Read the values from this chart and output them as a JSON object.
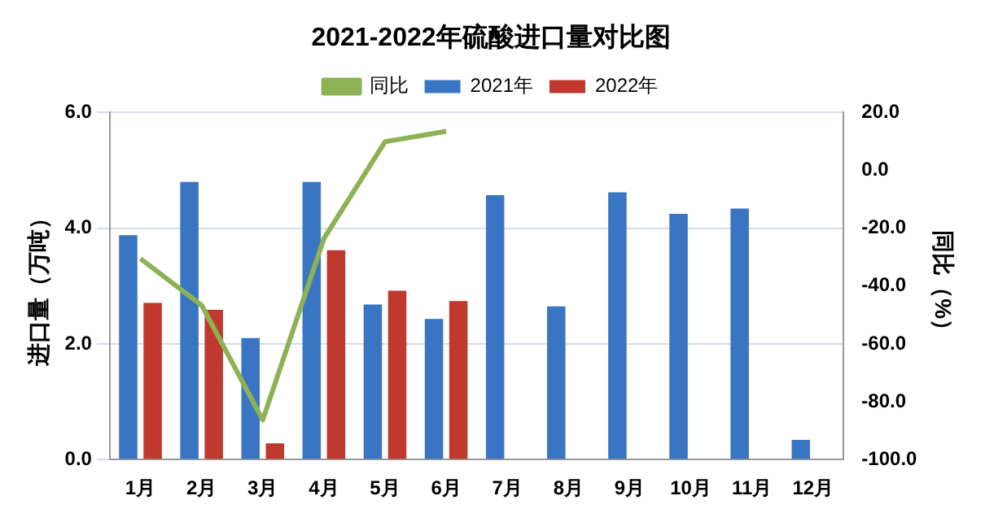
{
  "chart_data": {
    "type": "bar",
    "title": "2021-2022年硫酸进口量对比图",
    "categories": [
      "1月",
      "2月",
      "3月",
      "4月",
      "5月",
      "6月",
      "7月",
      "8月",
      "9月",
      "10月",
      "11月",
      "12月"
    ],
    "series": [
      {
        "name": "2021年",
        "color": "#3a75c4",
        "values": [
          3.88,
          4.8,
          2.1,
          4.8,
          2.68,
          2.43,
          4.57,
          2.65,
          4.62,
          4.25,
          4.34,
          0.34
        ]
      },
      {
        "name": "2022年",
        "color": "#c0392f",
        "values": [
          2.71,
          2.59,
          0.28,
          3.62,
          2.92,
          2.74,
          null,
          null,
          null,
          null,
          null,
          null
        ]
      },
      {
        "name": "同比",
        "type": "line",
        "axis": "y2",
        "color": "#8db255",
        "values": [
          -30.5,
          -46.6,
          -86.3,
          -23.6,
          9.9,
          13.5,
          null,
          null,
          null,
          null,
          null,
          null
        ]
      }
    ],
    "ylabel": "进口量（万吨）",
    "y2label": "同比（%）",
    "ylim": [
      0,
      6
    ],
    "yticks": [
      {
        "value": 0,
        "label": "0.0"
      },
      {
        "value": 2,
        "label": "2.0"
      },
      {
        "value": 4,
        "label": "4.0"
      },
      {
        "value": 6,
        "label": "6.0"
      }
    ],
    "y2lim": [
      -100,
      20
    ],
    "y2ticks": [
      {
        "value": -100,
        "label": "-100.0"
      },
      {
        "value": -80,
        "label": "-80.0"
      },
      {
        "value": -60,
        "label": "-60.0"
      },
      {
        "value": -40,
        "label": "-40.0"
      },
      {
        "value": -20,
        "label": "-20.0"
      },
      {
        "value": 0,
        "label": "0.0"
      },
      {
        "value": 20,
        "label": "20.0"
      }
    ],
    "grid": "y",
    "legend": "top",
    "marker": "none"
  }
}
